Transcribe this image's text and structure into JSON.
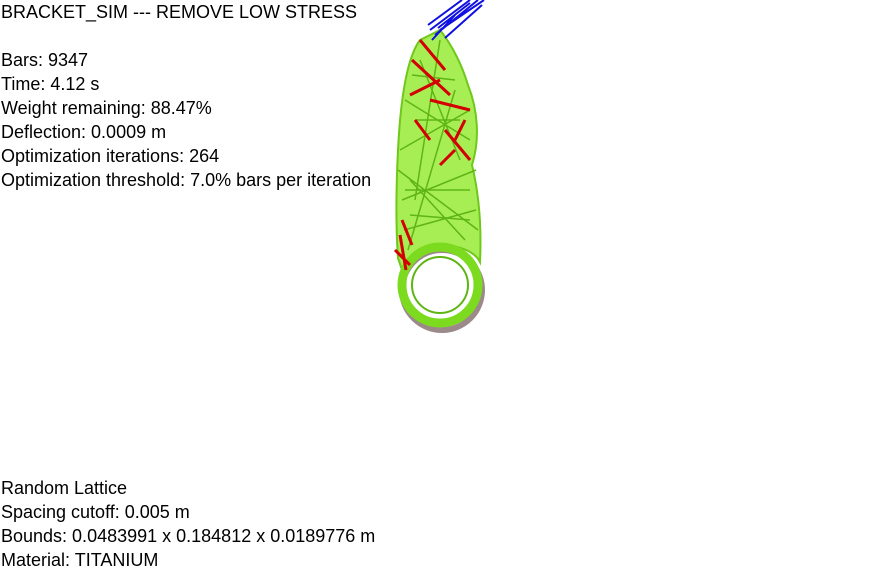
{
  "sim": {
    "title": "BRACKET_SIM --- REMOVE LOW STRESS",
    "stats": [
      "Bars: 9347",
      "Time: 4.12 s",
      "Weight remaining: 88.47%",
      "Deflection: 0.0009 m",
      "Optimization iterations: 264",
      "Optimization threshold: 7.0% bars per iteration"
    ],
    "info": [
      "Random Lattice",
      "Spacing cutoff: 0.005 m",
      "Bounds: 0.0483991 x 0.184812 x 0.0189776 m",
      "Material: TITANIUM"
    ]
  },
  "render": {
    "colors": {
      "low_stress": "#7ddb1f",
      "high_stress": "#d40000",
      "load": "#1010e0",
      "shadow": "#5a3a3a",
      "background": "#ffffff"
    }
  }
}
